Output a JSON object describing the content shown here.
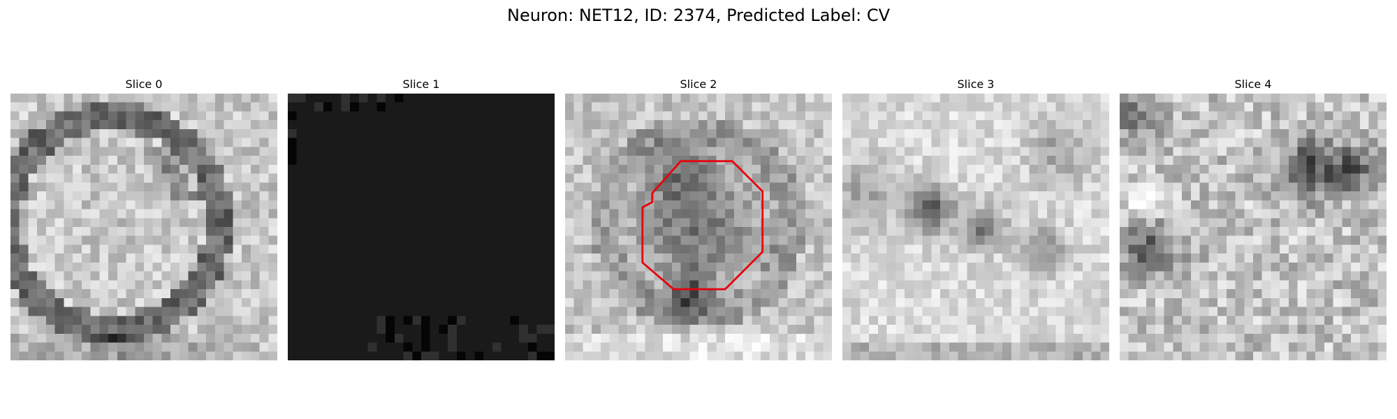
{
  "figure": {
    "title": "Neuron: NET12, ID: 2374, Predicted Label: CV"
  },
  "panels": [
    {
      "title": "Slice 0",
      "image": "grayscale microscopy patch, dark ring-like membrane structure on mid-grey texture",
      "seed": 11,
      "style": "ring"
    },
    {
      "title": "Slice 1",
      "image": "almost uniform near-black patch with sparse dark speckles along top and bottom edges",
      "seed": 23,
      "style": "dark"
    },
    {
      "title": "Slice 2",
      "image": "grayscale microscopy patch with dark rounded object in centre",
      "seed": 37,
      "style": "center",
      "overlay": "red-octagon-outline"
    },
    {
      "title": "Slice 3",
      "image": "bright grayscale microscopy patch with a few dark blobs",
      "seed": 53,
      "style": "blobs"
    },
    {
      "title": "Slice 4",
      "image": "noisy grayscale microscopy patch with dark patches at upper right and left edge",
      "seed": 71,
      "style": "noisy"
    }
  ],
  "colors": {
    "background": "#ffffff",
    "overlay": "#e8000b"
  }
}
